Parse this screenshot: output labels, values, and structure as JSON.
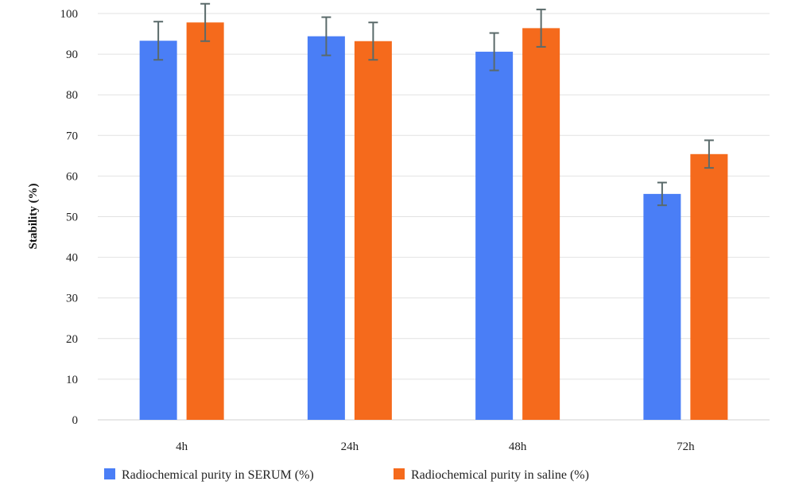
{
  "chart_data": {
    "type": "bar",
    "categories": [
      "4h",
      "24h",
      "48h",
      "72h"
    ],
    "series": [
      {
        "name": "Radiochemical purity in SERUM (%)",
        "color": "#4a7ef6",
        "values": [
          93.3,
          94.4,
          90.6,
          55.6
        ],
        "errors": [
          4.7,
          4.7,
          4.6,
          2.8
        ]
      },
      {
        "name": "Radiochemical purity in saline (%)",
        "color": "#f56a1c",
        "values": [
          97.8,
          93.2,
          96.4,
          65.4
        ],
        "errors": [
          4.6,
          4.6,
          4.6,
          3.4
        ]
      }
    ],
    "ylabel": "Stability (%)",
    "xlabel": "",
    "ylim": [
      0,
      100
    ],
    "yticks": [
      0,
      10,
      20,
      30,
      40,
      50,
      60,
      70,
      80,
      90,
      100
    ],
    "grid": true,
    "legend": "bottom",
    "error_bar_color": "#5a6a6a"
  }
}
